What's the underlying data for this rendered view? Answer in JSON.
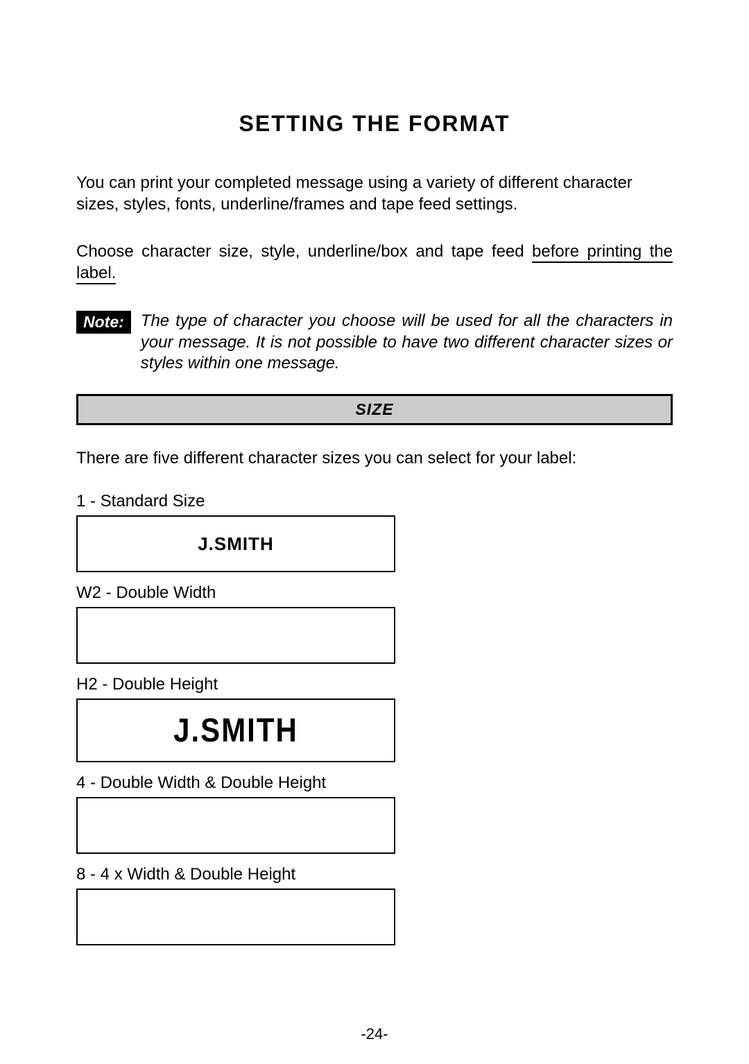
{
  "title": "SETTING THE FORMAT",
  "para1": "You can print your completed message using a variety of different character sizes, styles, fonts, underline/frames and tape feed settings.",
  "para2_plain": "Choose character size, style, underline/box and tape feed ",
  "para2_underlined": "before printing the label.",
  "note_label": "Note:",
  "note_text": "The type of character you choose will be used for all the characters in your message. It is not possible to have two different character sizes or styles within one message.",
  "section_bar": "SIZE",
  "intro_line": "There are five different character sizes you can select for your label:",
  "sizes": [
    {
      "label": "1 - Standard Size",
      "sample": "J.SMITH",
      "box_variant": "standard"
    },
    {
      "label": "W2 - Double  Width",
      "sample": "",
      "box_variant": "empty"
    },
    {
      "label": "H2 - Double Height",
      "sample": "J.SMITH",
      "box_variant": "tall"
    },
    {
      "label": "4 - Double Width &  Double Height",
      "sample": "",
      "box_variant": "empty"
    },
    {
      "label": "8 - 4 x  Width  &  Double Height",
      "sample": "",
      "box_variant": "empty"
    }
  ],
  "page_number": "-24-"
}
